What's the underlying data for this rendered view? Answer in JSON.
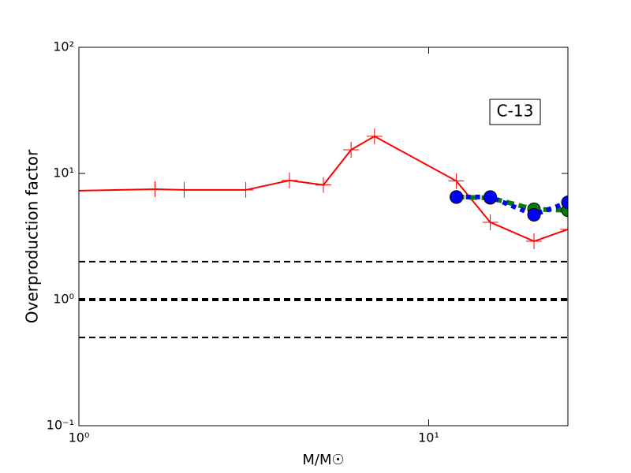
{
  "chart_data": {
    "type": "line",
    "xlabel": "M/M☉",
    "ylabel": "Overproduction factor",
    "annotation": "C-13",
    "xscale": "log",
    "yscale": "log",
    "xlim": [
      1,
      25
    ],
    "ylim": [
      0.1,
      100
    ],
    "xticks": [
      {
        "value": 1,
        "label": "10⁰"
      },
      {
        "value": 10,
        "label": "10¹"
      }
    ],
    "yticks": [
      {
        "value": 0.1,
        "label": "10⁻¹"
      },
      {
        "value": 1,
        "label": "10⁰"
      },
      {
        "value": 10,
        "label": "10¹"
      },
      {
        "value": 100,
        "label": "10²"
      }
    ],
    "hlines": [
      {
        "y": 2,
        "linewidth": 2
      },
      {
        "y": 1,
        "linewidth": 4
      },
      {
        "y": 0.5,
        "linewidth": 2
      }
    ],
    "series": [
      {
        "color": "#ff0000",
        "marker": "plus",
        "linestyle": "solid",
        "x": [
          1,
          1.65,
          2,
          3,
          4,
          5,
          6,
          7,
          12,
          15,
          20,
          25
        ],
        "values": [
          7.3,
          7.5,
          7.4,
          7.4,
          8.8,
          8.1,
          15.4,
          19.7,
          8.7,
          4.1,
          2.9,
          3.6
        ]
      },
      {
        "color": "#008000",
        "marker": "circle",
        "linestyle": "dashed",
        "x": [
          12,
          15,
          20,
          25
        ],
        "values": [
          6.5,
          6.4,
          5.2,
          5.1
        ]
      },
      {
        "color": "#0000ff",
        "marker": "circle",
        "linestyle": "dotted",
        "x": [
          12,
          15,
          20,
          25
        ],
        "values": [
          6.5,
          6.5,
          4.7,
          5.9
        ]
      }
    ]
  }
}
